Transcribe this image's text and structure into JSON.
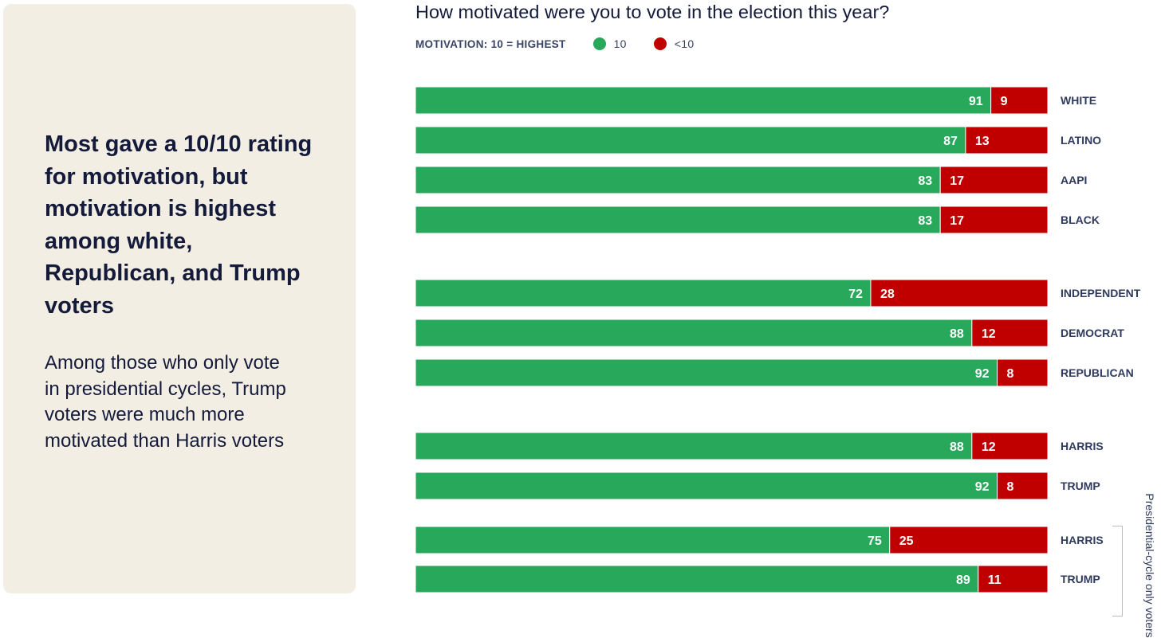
{
  "panel": {
    "headline": "Most gave a 10/10 rating for motivation, but motivation is highest among white, Republican, and Trump voters",
    "subtext": "Among those who only vote in presidential cycles, Trump voters were much more motivated than Harris voters"
  },
  "chart_data": {
    "type": "bar",
    "orientation": "horizontal",
    "stacked": true,
    "title": "How motivated were you to vote in the election this year?",
    "legend_title": "MOTIVATION: 10 = HIGHEST",
    "legend_placement": "top-left",
    "categories": [
      "WHITE",
      "LATINO",
      "AAPI",
      "BLACK",
      "INDEPENDENT",
      "DEMOCRAT",
      "REPUBLICAN",
      "HARRIS",
      "TRUMP",
      "HARRIS",
      "TRUMP"
    ],
    "groups": [
      [
        0,
        1,
        2,
        3
      ],
      [
        4,
        5,
        6
      ],
      [
        7,
        8
      ],
      [
        9,
        10
      ]
    ],
    "group_label": "Presidential-cycle only voters",
    "series": [
      {
        "name": "10",
        "color": "#27a85a",
        "values": [
          91,
          87,
          83,
          83,
          72,
          88,
          92,
          88,
          92,
          75,
          89
        ]
      },
      {
        "name": "<10",
        "color": "#c00000",
        "values": [
          9,
          13,
          17,
          17,
          28,
          12,
          8,
          12,
          8,
          25,
          11
        ]
      }
    ],
    "xlim": [
      0,
      100
    ],
    "grid": false
  }
}
